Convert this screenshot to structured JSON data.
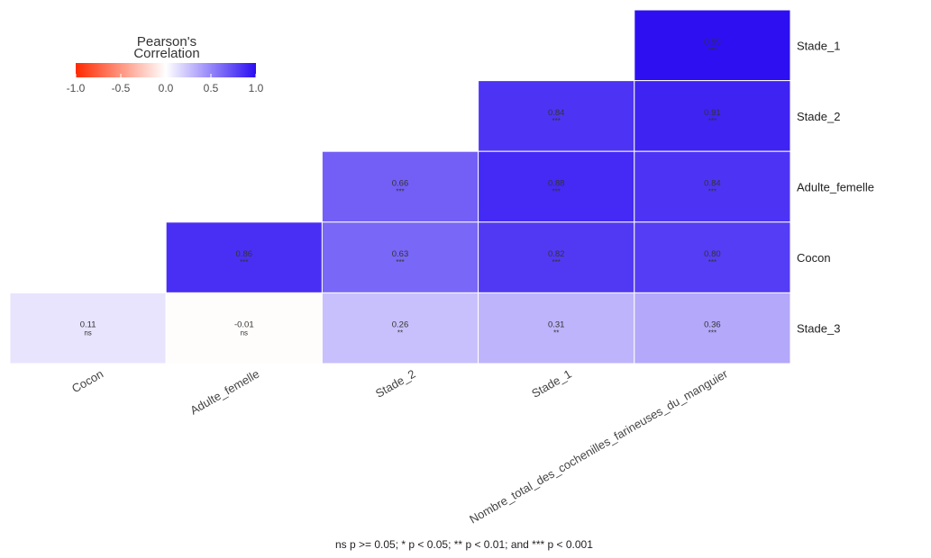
{
  "chart_data": {
    "type": "heatmap",
    "legend": {
      "title_line1": "Pearson's",
      "title_line2": "Correlation",
      "ticks": [
        "-1.0",
        "-0.5",
        "0.0",
        "0.5",
        "1.0"
      ],
      "range": [
        -1.0,
        1.0
      ],
      "colors": {
        "low": "#ff2a00",
        "mid": "#ffffff",
        "high": "#2b0df2"
      }
    },
    "rows": [
      "Stade_1",
      "Stade_2",
      "Adulte_femelle",
      "Cocon",
      "Stade_3"
    ],
    "columns": [
      "Cocon",
      "Adulte_femelle",
      "Stade_2",
      "Stade_1",
      "Nombre_total_des_cochenilles_farineuses_du_manguier"
    ],
    "cells": [
      {
        "row": 0,
        "col": 4,
        "value": 0.99,
        "label": "0.99",
        "sig": "***"
      },
      {
        "row": 1,
        "col": 3,
        "value": 0.84,
        "label": "0.84",
        "sig": "***"
      },
      {
        "row": 1,
        "col": 4,
        "value": 0.91,
        "label": "0.91",
        "sig": "***"
      },
      {
        "row": 2,
        "col": 2,
        "value": 0.66,
        "label": "0.66",
        "sig": "***"
      },
      {
        "row": 2,
        "col": 3,
        "value": 0.88,
        "label": "0.88",
        "sig": "***"
      },
      {
        "row": 2,
        "col": 4,
        "value": 0.84,
        "label": "0.84",
        "sig": "***"
      },
      {
        "row": 3,
        "col": 1,
        "value": 0.86,
        "label": "0.86",
        "sig": "***"
      },
      {
        "row": 3,
        "col": 2,
        "value": 0.63,
        "label": "0.63",
        "sig": "***"
      },
      {
        "row": 3,
        "col": 3,
        "value": 0.82,
        "label": "0.82",
        "sig": "***"
      },
      {
        "row": 3,
        "col": 4,
        "value": 0.8,
        "label": "0.80",
        "sig": "***"
      },
      {
        "row": 4,
        "col": 0,
        "value": 0.11,
        "label": "0.11",
        "sig": "ns"
      },
      {
        "row": 4,
        "col": 1,
        "value": -0.01,
        "label": "-0.01",
        "sig": "ns"
      },
      {
        "row": 4,
        "col": 2,
        "value": 0.26,
        "label": "0.26",
        "sig": "**"
      },
      {
        "row": 4,
        "col": 3,
        "value": 0.31,
        "label": "0.31",
        "sig": "**"
      },
      {
        "row": 4,
        "col": 4,
        "value": 0.36,
        "label": "0.36",
        "sig": "***"
      }
    ],
    "footnote": "ns p >= 0.05; * p < 0.05; ** p < 0.01; and *** p < 0.001",
    "grid": false,
    "legend_position": "top-left"
  }
}
